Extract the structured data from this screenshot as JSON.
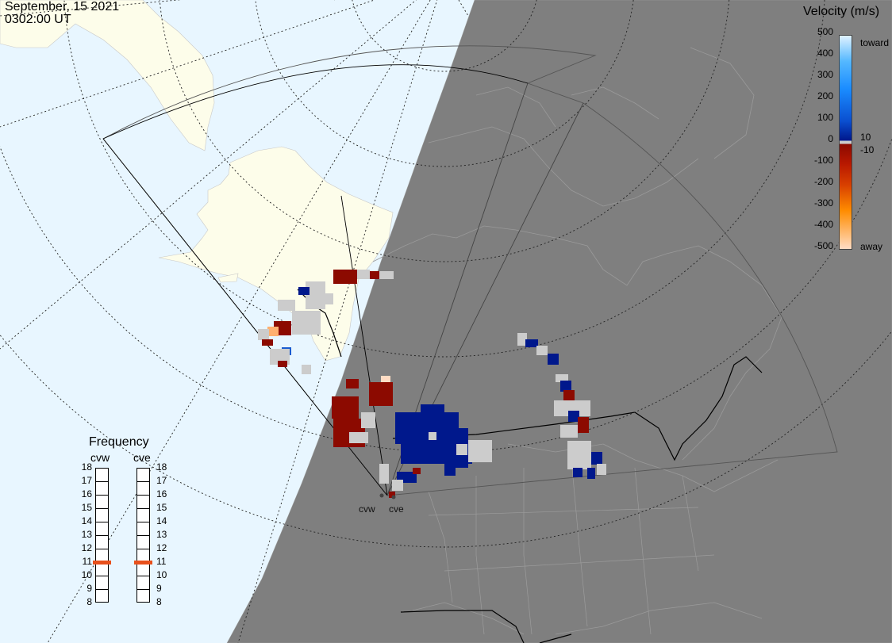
{
  "header": {
    "date": "September, 15 2021",
    "time": "0302:00 UT"
  },
  "velocity_scale": {
    "title": "Velocity (m/s)",
    "ticks": [
      "500",
      "400",
      "300",
      "200",
      "100",
      "0",
      "-100",
      "-200",
      "-300",
      "-400",
      "-500"
    ],
    "inner_labels": [
      "10",
      "-10"
    ],
    "toward_label": "toward",
    "away_label": "away",
    "colors": {
      "toward_max": "#dff2ff",
      "toward_mid": "#1a8cff",
      "toward_low": "#00188c",
      "near_zero": "#cccccc",
      "away_low": "#8c0a00",
      "away_mid": "#ff8c00",
      "away_max": "#ffdcc4"
    }
  },
  "frequency_panel": {
    "title": "Frequency",
    "radars": [
      {
        "name": "cvw",
        "value": 11
      },
      {
        "name": "cve",
        "value": 11
      }
    ],
    "ticks": [
      "18",
      "17",
      "16",
      "15",
      "14",
      "13",
      "12",
      "11",
      "10",
      "9",
      "8"
    ],
    "marker_color": "#e8501c"
  },
  "sites": [
    {
      "name": "cvw"
    },
    {
      "name": "cve"
    }
  ],
  "map_colors": {
    "ocean": "#e8f6ff",
    "land_day": "#fdfdea",
    "night": "#7f7f7f",
    "night_border": "#a8a8a8"
  }
}
